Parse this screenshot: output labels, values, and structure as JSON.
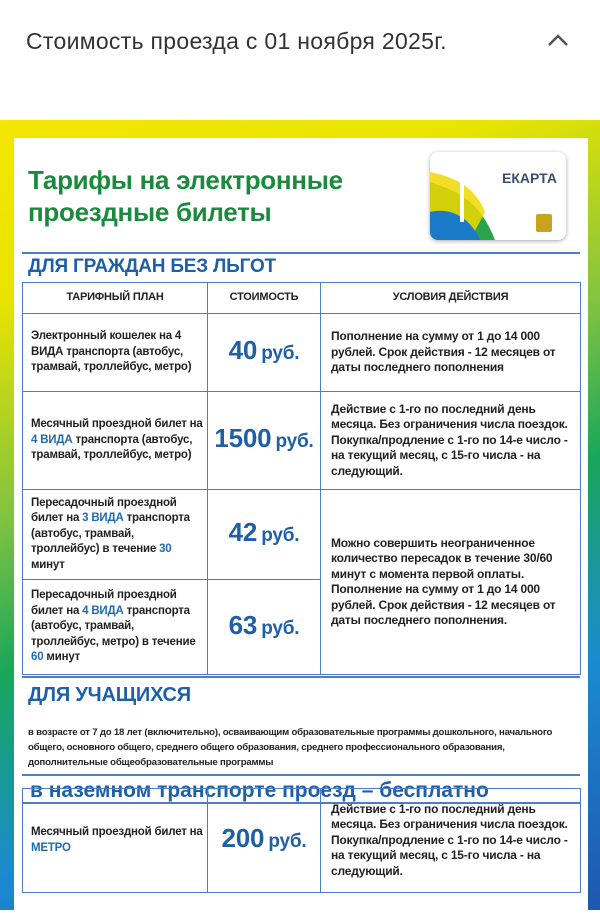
{
  "header": {
    "title": "Стоимость проезда с 01 ноября 2025г."
  },
  "poster": {
    "title": "Тарифы на электронные проездные билеты",
    "card_label": "ЕКАРТА",
    "general": {
      "heading": "ДЛЯ ГРАЖДАН БЕЗ ЛЬГОТ",
      "columns": [
        "ТАРИФНЫЙ ПЛАН",
        "СТОИМОСТЬ",
        "УСЛОВИЯ ДЕЙСТВИЯ"
      ],
      "rows": [
        {
          "plan": [
            "Электронный кошелек на 4 ВИДА транспорта (автобус, трамвай, троллейбус, метро)"
          ],
          "price": "40",
          "unit": "руб.",
          "conditions": [
            "Пополнение на сумму от 1 до 14 000 рублей. Срок действия - 12 месяцев от даты последнего пополнения"
          ]
        },
        {
          "plan": [
            "Месячный проездной билет на ",
            "4 ВИДА",
            " транспорта (автобус, трамвай, троллейбус, метро)"
          ],
          "price": "1500",
          "unit": "руб.",
          "conditions": [
            "Действие с 1-го по последний день месяца. Без ограничения числа поездок. Покупка/продление с 1-го по 14-е число - на текущий месяц, с 15-го числа - на следующий."
          ]
        },
        {
          "plan": [
            "Пересадочный проездной билет на ",
            "3 ВИДА",
            " транспорта (автобус, трамвай, троллейбус) в течение ",
            "30",
            " минут"
          ],
          "price": "42",
          "unit": "руб.",
          "conditions": [
            "Можно совершить неограниченное количество пересадок в течение 30/60 минут с момента первой оплаты.",
            "Пополнение на сумму от 1 до 14 000 рублей. Срок действия - 12 месяцев от даты последнего пополнения."
          ]
        },
        {
          "plan": [
            "Пересадочный проездной билет на ",
            "4 ВИДА",
            " транспорта (автобус, трамвай, троллейбус, метро) в течение ",
            "60",
            " минут"
          ],
          "price": "63",
          "unit": "руб."
        }
      ]
    },
    "students": {
      "heading": "ДЛЯ УЧАЩИХСЯ",
      "description": "в возрасте от 7 до 18 лет (включительно), осваивающим образовательные программы дошкольного, начального общего, основного общего, среднего общего образования, среднего профессионального образования, дополнительные общеобразовательные программы",
      "banner": "в наземном транспорте проезд – бесплатно",
      "rows": [
        {
          "plan": [
            "Месячный проездной билет на ",
            "МЕТРО"
          ],
          "price": "200",
          "unit": "руб.",
          "conditions": [
            "Действие с 1-го по последний день месяца. Без ограничения числа поездок. Покупка/продление с 1-го по 14-е число - на текущий месяц, с 15-го числа - на следующий."
          ]
        }
      ]
    }
  }
}
